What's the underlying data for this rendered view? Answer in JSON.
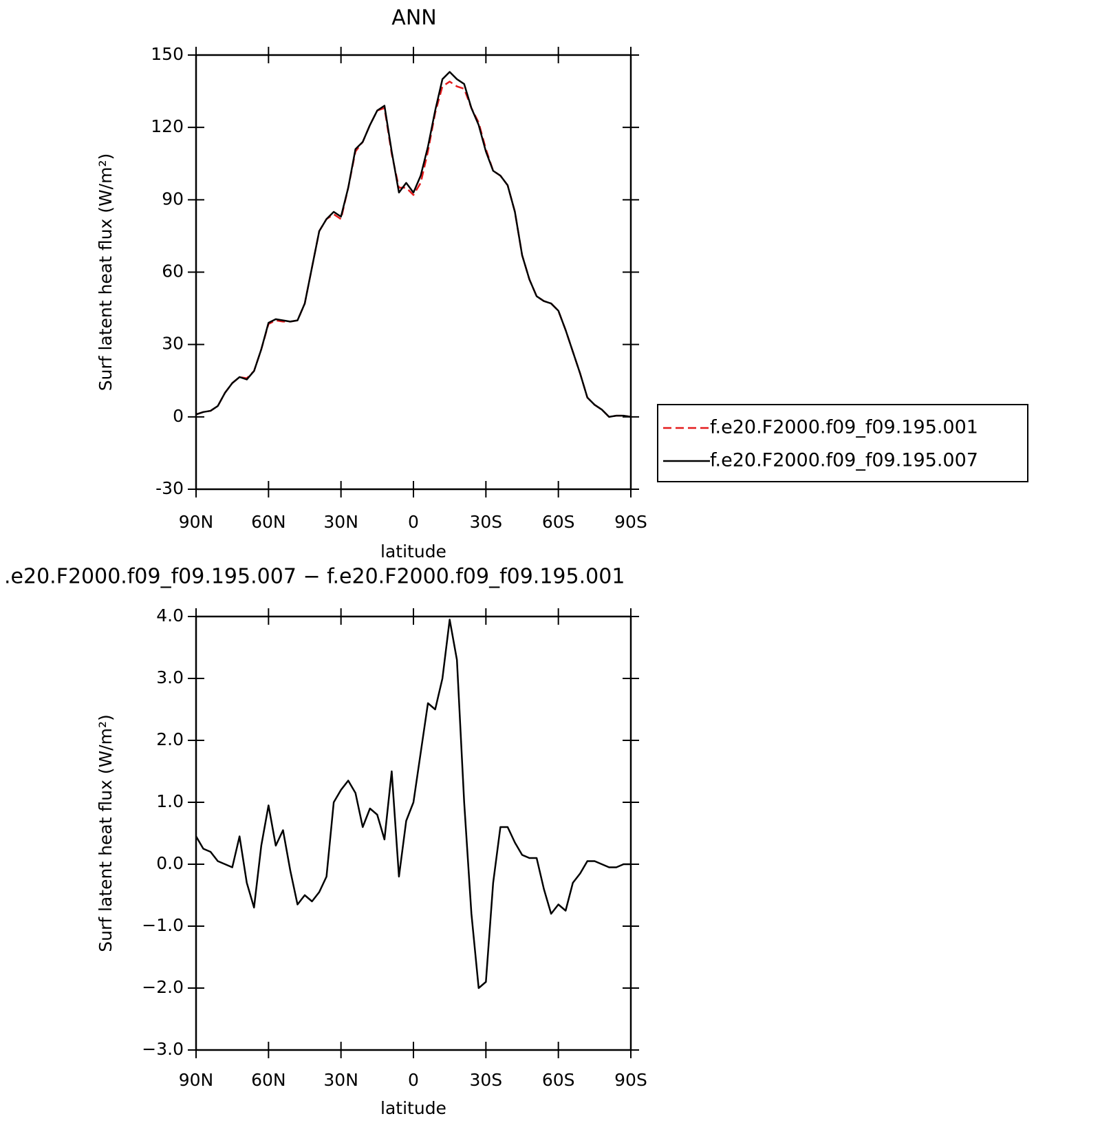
{
  "chart_data": [
    {
      "type": "line",
      "title": "ANN",
      "xlabel": "latitude",
      "ylabel": "Surf latent heat flux (W/m²)",
      "x": [
        90,
        87,
        84,
        81,
        78,
        75,
        72,
        69,
        66,
        63,
        60,
        57,
        54,
        51,
        48,
        45,
        42,
        39,
        36,
        33,
        30,
        27,
        24,
        21,
        18,
        15,
        12,
        9,
        6,
        3,
        0,
        -3,
        -6,
        -9,
        -12,
        -15,
        -18,
        -21,
        -24,
        -27,
        -30,
        -33,
        -36,
        -39,
        -42,
        -45,
        -48,
        -51,
        -54,
        -57,
        -60,
        -63,
        -66,
        -69,
        -72,
        -75,
        -78,
        -81,
        -84,
        -87,
        -90
      ],
      "series": [
        {
          "name": "f.e20.F2000.f09_f09.195.001",
          "color": "#e41a1c",
          "dash": true,
          "values": [
            1,
            2,
            2.5,
            4.5,
            10,
            14,
            16.5,
            16,
            19,
            28,
            38.5,
            40,
            39.5,
            39.5,
            40,
            47,
            62,
            77,
            82,
            84,
            82,
            95,
            110,
            114,
            121,
            127,
            128,
            109,
            95,
            95,
            92,
            97,
            110,
            126,
            137,
            139,
            137,
            136,
            128,
            122,
            111,
            102,
            100,
            96,
            85,
            67,
            57,
            50,
            48,
            47,
            44,
            36,
            27,
            18,
            8,
            5,
            3,
            0,
            0.5,
            0.5,
            0
          ]
        },
        {
          "name": "f.e20.F2000.f09_f09.195.007",
          "color": "#000000",
          "dash": false,
          "values": [
            1,
            2,
            2.5,
            4.5,
            10,
            14,
            16.5,
            15.5,
            19,
            28,
            39,
            40.5,
            40,
            39.5,
            40,
            47,
            62,
            77,
            82,
            85,
            83,
            95,
            111,
            114,
            121,
            127,
            129,
            110,
            93,
            97,
            93,
            100,
            112,
            127,
            140,
            143,
            140,
            138,
            128,
            121,
            110,
            102,
            100,
            96,
            85,
            67,
            57,
            50,
            48,
            47,
            44,
            36,
            27,
            18,
            8,
            5,
            3,
            0,
            0.5,
            0.5,
            0
          ]
        }
      ],
      "xlim": [
        90,
        -90
      ],
      "xticks": [
        {
          "value": 90,
          "label": "90N"
        },
        {
          "value": 60,
          "label": "60N"
        },
        {
          "value": 30,
          "label": "30N"
        },
        0,
        {
          "value": -30,
          "label": "30S"
        },
        {
          "value": -60,
          "label": "60S"
        },
        {
          "value": -90,
          "label": "90S"
        }
      ],
      "ylim": [
        -30,
        150
      ],
      "yticks": [
        -30,
        0,
        30,
        60,
        90,
        120,
        150
      ],
      "legend": "right"
    },
    {
      "type": "line",
      "title": ".e20.F2000.f09_f09.195.007 − f.e20.F2000.f09_f09.195.001",
      "xlabel": "latitude",
      "ylabel": "Surf latent heat flux (W/m²)",
      "x": [
        90,
        87,
        84,
        81,
        78,
        75,
        72,
        69,
        66,
        63,
        60,
        57,
        54,
        51,
        48,
        45,
        42,
        39,
        36,
        33,
        30,
        27,
        24,
        21,
        18,
        15,
        12,
        9,
        6,
        3,
        0,
        -3,
        -6,
        -9,
        -12,
        -15,
        -18,
        -21,
        -24,
        -27,
        -30,
        -33,
        -36,
        -39,
        -42,
        -45,
        -48,
        -51,
        -54,
        -57,
        -60,
        -63,
        -66,
        -69,
        -72,
        -75,
        -78,
        -81,
        -84,
        -87,
        -90
      ],
      "color": "#000000",
      "values": [
        0.45,
        0.25,
        0.2,
        0.05,
        0,
        -0.05,
        0.45,
        -0.3,
        -0.7,
        0.3,
        0.95,
        0.3,
        0.55,
        -0.1,
        -0.65,
        -0.5,
        -0.6,
        -0.45,
        -0.2,
        1.0,
        1.2,
        1.35,
        1.15,
        0.6,
        0.9,
        0.8,
        0.4,
        1.5,
        -0.2,
        0.7,
        1.0,
        1.8,
        2.6,
        2.5,
        3.0,
        3.95,
        3.3,
        1.0,
        -0.8,
        -2.0,
        -1.9,
        -0.3,
        0.6,
        0.6,
        0.35,
        0.15,
        0.1,
        0.1,
        -0.4,
        -0.8,
        -0.65,
        -0.75,
        -0.3,
        -0.15,
        0.05,
        0.05,
        0,
        -0.05,
        -0.05,
        0,
        0
      ],
      "xlim": [
        90,
        -90
      ],
      "xticks": [
        {
          "value": 90,
          "label": "90N"
        },
        {
          "value": 60,
          "label": "60N"
        },
        {
          "value": 30,
          "label": "30N"
        },
        0,
        {
          "value": -30,
          "label": "30S"
        },
        {
          "value": -60,
          "label": "60S"
        },
        {
          "value": -90,
          "label": "90S"
        }
      ],
      "ylim": [
        -3,
        4
      ],
      "yticks": [
        {
          "value": -3,
          "label": "−3.0"
        },
        {
          "value": -2,
          "label": "−2.0"
        },
        {
          "value": -1,
          "label": "−1.0"
        },
        {
          "value": 0,
          "label": "0.0"
        },
        {
          "value": 1,
          "label": "1.0"
        },
        {
          "value": 2,
          "label": "2.0"
        },
        {
          "value": 3,
          "label": "3.0"
        },
        {
          "value": 4,
          "label": "4.0"
        }
      ]
    }
  ]
}
